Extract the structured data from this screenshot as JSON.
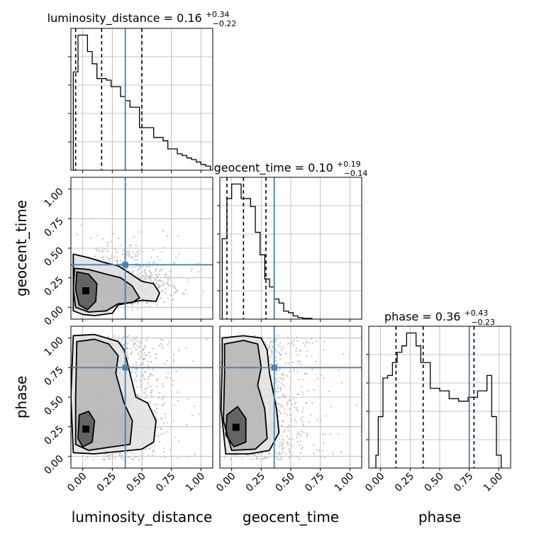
{
  "chart_data": {
    "type": "corner",
    "parameters": [
      "luminosity_distance",
      "geocent_time",
      "phase"
    ],
    "axis_range": [
      -0.1,
      1.1
    ],
    "tick_labels": [
      "0.00",
      "0.25",
      "0.50",
      "0.75",
      "1.00"
    ],
    "ticks": [
      0,
      0.25,
      0.5,
      0.75,
      1.0
    ],
    "grid": true,
    "truth_color": "#4682b4",
    "truths": [
      0.36,
      0.36,
      0.75
    ],
    "titles": [
      {
        "name": "luminosity_distance",
        "value": "0.16",
        "plus": "+0.34",
        "minus": "−0.22"
      },
      {
        "name": "geocent_time",
        "value": "0.10",
        "plus": "+0.19",
        "minus": "−0.14"
      },
      {
        "name": "phase",
        "value": "0.36",
        "plus": "+0.43",
        "minus": "−0.23"
      }
    ],
    "quantiles": [
      [
        -0.06,
        0.16,
        0.5
      ],
      [
        -0.04,
        0.1,
        0.29
      ],
      [
        0.13,
        0.36,
        0.79
      ]
    ],
    "histograms": [
      {
        "bin_edges": [
          -0.08,
          -0.04,
          0.0,
          0.04,
          0.08,
          0.12,
          0.16,
          0.2,
          0.24,
          0.28,
          0.32,
          0.36,
          0.4,
          0.44,
          0.48,
          0.52,
          0.56,
          0.6,
          0.64,
          0.68,
          0.72,
          0.76,
          0.8,
          0.84,
          0.88,
          0.92,
          0.96,
          1.0,
          1.04,
          1.08
        ],
        "counts": [
          120,
          165,
          165,
          145,
          130,
          112,
          112,
          110,
          102,
          102,
          90,
          85,
          77,
          77,
          52,
          52,
          52,
          40,
          40,
          36,
          26,
          26,
          20,
          18,
          15,
          13,
          10,
          7,
          5
        ]
      },
      {
        "bin_edges": [
          -0.08,
          -0.04,
          0.0,
          0.04,
          0.08,
          0.12,
          0.16,
          0.2,
          0.24,
          0.28,
          0.32,
          0.36,
          0.4,
          0.44,
          0.48,
          0.52,
          0.56,
          0.6,
          0.64,
          0.68
        ],
        "counts": [
          100,
          150,
          168,
          168,
          150,
          150,
          140,
          108,
          80,
          50,
          40,
          25,
          20,
          10,
          8,
          4,
          2,
          1,
          1
        ]
      },
      {
        "bin_edges": [
          -0.04,
          -0.02,
          0.02,
          0.06,
          0.1,
          0.14,
          0.18,
          0.22,
          0.26,
          0.3,
          0.34,
          0.38,
          0.42,
          0.46,
          0.5,
          0.54,
          0.58,
          0.62,
          0.66,
          0.7,
          0.74,
          0.78,
          0.82,
          0.86,
          0.9,
          0.94,
          0.98,
          1.02
        ],
        "counts": [
          10,
          40,
          70,
          72,
          82,
          90,
          95,
          105,
          105,
          95,
          82,
          82,
          62,
          62,
          60,
          60,
          54,
          54,
          52,
          52,
          55,
          55,
          60,
          60,
          72,
          40,
          10
        ]
      }
    ],
    "contours_2d": [
      {
        "x_param": "luminosity_distance",
        "y_param": "geocent_time",
        "levels": [
          [
            [
              -0.08,
              0.45
            ],
            [
              0.05,
              0.42
            ],
            [
              0.18,
              0.38
            ],
            [
              0.3,
              0.35
            ],
            [
              0.38,
              0.3
            ],
            [
              0.5,
              0.22
            ],
            [
              0.6,
              0.2
            ],
            [
              0.65,
              0.12
            ],
            [
              0.62,
              0.05
            ],
            [
              0.5,
              0.06
            ],
            [
              0.4,
              0.04
            ],
            [
              0.3,
              0.02
            ],
            [
              0.25,
              -0.05
            ],
            [
              0.1,
              -0.07
            ],
            [
              0.0,
              -0.06
            ],
            [
              -0.08,
              -0.03
            ]
          ],
          [
            [
              -0.07,
              0.33
            ],
            [
              0.05,
              0.32
            ],
            [
              0.2,
              0.28
            ],
            [
              0.32,
              0.25
            ],
            [
              0.42,
              0.18
            ],
            [
              0.48,
              0.08
            ],
            [
              0.42,
              0.04
            ],
            [
              0.3,
              0.03
            ],
            [
              0.2,
              -0.03
            ],
            [
              0.05,
              -0.04
            ],
            [
              -0.06,
              0.0
            ],
            [
              -0.08,
              0.15
            ]
          ],
          [
            [
              -0.05,
              0.3
            ],
            [
              0.05,
              0.28
            ],
            [
              0.12,
              0.2
            ],
            [
              0.11,
              0.05
            ],
            [
              0.04,
              -0.02
            ],
            [
              -0.03,
              0.02
            ],
            [
              -0.06,
              0.15
            ]
          ]
        ]
      },
      {
        "x_param": "luminosity_distance",
        "y_param": "phase",
        "levels": [
          [
            [
              -0.08,
              1.02
            ],
            [
              0.1,
              1.03
            ],
            [
              0.2,
              1.0
            ],
            [
              0.3,
              0.97
            ],
            [
              0.35,
              0.9
            ],
            [
              0.4,
              0.7
            ],
            [
              0.45,
              0.5
            ],
            [
              0.55,
              0.45
            ],
            [
              0.62,
              0.3
            ],
            [
              0.6,
              0.12
            ],
            [
              0.5,
              0.06
            ],
            [
              0.3,
              0.04
            ],
            [
              0.1,
              0.02
            ],
            [
              -0.08,
              0.03
            ],
            [
              -0.1,
              0.5
            ]
          ],
          [
            [
              -0.05,
              0.97
            ],
            [
              0.1,
              0.99
            ],
            [
              0.22,
              0.95
            ],
            [
              0.3,
              0.85
            ],
            [
              0.28,
              0.7
            ],
            [
              0.35,
              0.45
            ],
            [
              0.42,
              0.3
            ],
            [
              0.4,
              0.1
            ],
            [
              0.25,
              0.08
            ],
            [
              0.05,
              0.05
            ],
            [
              -0.06,
              0.1
            ],
            [
              -0.06,
              0.5
            ]
          ],
          [
            [
              -0.03,
              0.35
            ],
            [
              0.05,
              0.38
            ],
            [
              0.1,
              0.3
            ],
            [
              0.08,
              0.12
            ],
            [
              0.0,
              0.08
            ],
            [
              -0.04,
              0.15
            ]
          ]
        ]
      },
      {
        "x_param": "geocent_time",
        "y_param": "phase",
        "levels": [
          [
            [
              -0.08,
              1.0
            ],
            [
              0.1,
              1.02
            ],
            [
              0.25,
              1.0
            ],
            [
              0.3,
              0.9
            ],
            [
              0.32,
              0.7
            ],
            [
              0.38,
              0.4
            ],
            [
              0.4,
              0.2
            ],
            [
              0.32,
              0.05
            ],
            [
              0.15,
              0.02
            ],
            [
              -0.05,
              0.02
            ],
            [
              -0.09,
              0.4
            ],
            [
              -0.08,
              0.8
            ]
          ],
          [
            [
              -0.06,
              0.95
            ],
            [
              0.1,
              0.98
            ],
            [
              0.22,
              0.95
            ],
            [
              0.25,
              0.75
            ],
            [
              0.22,
              0.6
            ],
            [
              0.28,
              0.4
            ],
            [
              0.3,
              0.15
            ],
            [
              0.2,
              0.06
            ],
            [
              0.0,
              0.05
            ],
            [
              -0.07,
              0.3
            ],
            [
              -0.06,
              0.7
            ]
          ],
          [
            [
              -0.04,
              0.35
            ],
            [
              0.05,
              0.42
            ],
            [
              0.12,
              0.32
            ],
            [
              0.12,
              0.12
            ],
            [
              0.02,
              0.08
            ],
            [
              -0.05,
              0.18
            ]
          ]
        ]
      }
    ]
  }
}
